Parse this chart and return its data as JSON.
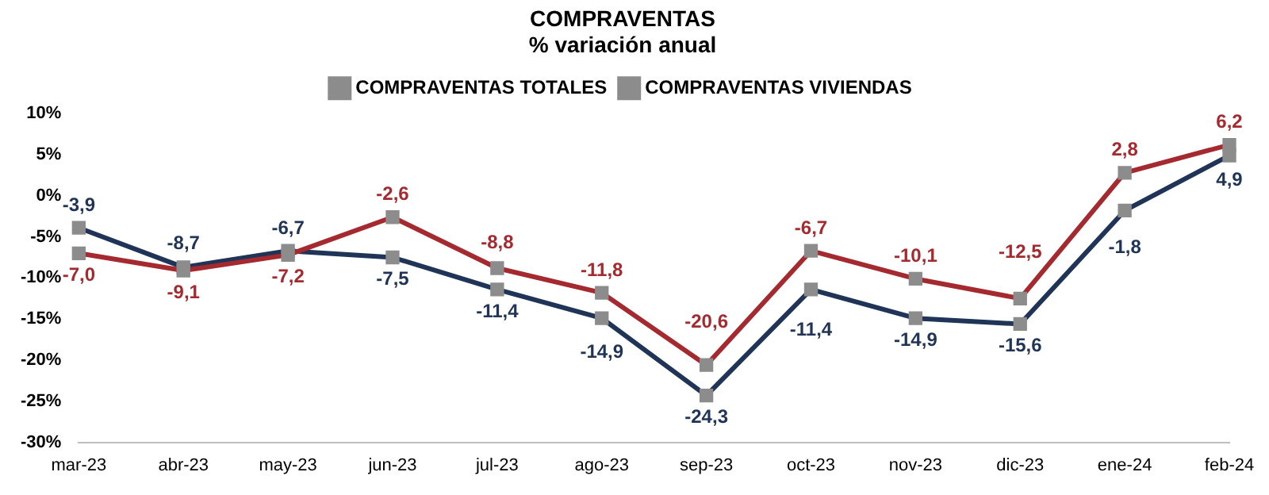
{
  "chart_data": {
    "type": "line",
    "title": "COMPRAVENTAS",
    "subtitle": "% variación anual",
    "categories": [
      "mar-23",
      "abr-23",
      "may-23",
      "jun-23",
      "jul-23",
      "ago-23",
      "sep-23",
      "oct-23",
      "nov-23",
      "dic-23",
      "ene-24",
      "feb-24"
    ],
    "series": [
      {
        "name": "COMPRAVENTAS TOTALES",
        "color": "#a52a2f",
        "values": [
          -7.0,
          -9.1,
          -7.2,
          -2.6,
          -8.8,
          -11.8,
          -20.6,
          -6.7,
          -10.1,
          -12.5,
          2.8,
          6.2
        ],
        "value_labels": [
          "-7,0",
          "-9,1",
          "-7,2",
          "-2,6",
          "-8,8",
          "-11,8",
          "-20,6",
          "-6,7",
          "-10,1",
          "-12,5",
          "2,8",
          "6,2"
        ]
      },
      {
        "name": "COMPRAVENTAS VIVIENDAS",
        "color": "#1f3457",
        "values": [
          -3.9,
          -8.7,
          -6.7,
          -7.5,
          -11.4,
          -14.9,
          -24.3,
          -11.4,
          -14.9,
          -15.6,
          -1.8,
          4.9
        ],
        "value_labels": [
          "-3,9",
          "-8,7",
          "-6,7",
          "-7,5",
          "-11,4",
          "-14,9",
          "-24,3",
          "-11,4",
          "-14,9",
          "-15,6",
          "-1,8",
          "4,9"
        ]
      }
    ],
    "ylim": [
      -30,
      10
    ],
    "yticks": [
      {
        "value": -30,
        "label": "-30%"
      },
      {
        "value": -25,
        "label": "-25%"
      },
      {
        "value": -20,
        "label": "-20%"
      },
      {
        "value": -15,
        "label": "-15%"
      },
      {
        "value": -10,
        "label": "-10%"
      },
      {
        "value": -5,
        "label": "-5%"
      },
      {
        "value": 0,
        "label": "0%"
      },
      {
        "value": 5,
        "label": "5%"
      },
      {
        "value": 10,
        "label": "10%"
      }
    ],
    "legend": "top",
    "marker": "square",
    "line_style": "solid",
    "grid": false
  }
}
